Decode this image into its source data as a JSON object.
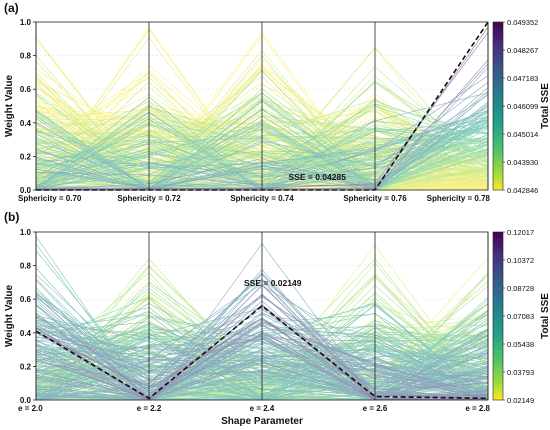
{
  "chart_data": [
    {
      "type": "line",
      "panel": "(a)",
      "xlabel": "",
      "ylabel": "Weight Value",
      "ylim": [
        0,
        1.0
      ],
      "yticks": [
        "0.0",
        "0.2",
        "0.4",
        "0.6",
        "0.8",
        "1.0"
      ],
      "categories": [
        "Sphericity = 0.70",
        "Sphericity = 0.72",
        "Sphericity = 0.74",
        "Sphericity = 0.76",
        "Sphericity = 0.78"
      ],
      "best_line": {
        "values": [
          0.0,
          0.0,
          0.0,
          0.0,
          1.0
        ],
        "annotation": "SSE = 0.04285"
      },
      "colorbar": {
        "label": "Total SSE",
        "colormap": "viridis_r",
        "ticks": [
          "0.049352",
          "0.048267",
          "0.047183",
          "0.046099",
          "0.045014",
          "0.043930",
          "0.042846"
        ]
      }
    },
    {
      "type": "line",
      "panel": "(b)",
      "xlabel": "Shape Parameter",
      "ylabel": "Weight Value",
      "ylim": [
        0,
        1.0
      ],
      "yticks": [
        "0.0",
        "0.2",
        "0.4",
        "0.6",
        "0.8",
        "1.0"
      ],
      "categories": [
        "e = 2.0",
        "e = 2.2",
        "e = 2.4",
        "e = 2.6",
        "e = 2.8"
      ],
      "best_line": {
        "values": [
          0.41,
          0.01,
          0.56,
          0.02,
          0.01
        ],
        "annotation": "SSE = 0.02149"
      },
      "colorbar": {
        "label": "Total SSE",
        "colormap": "viridis_r",
        "ticks": [
          "0.12017",
          "0.10372",
          "0.08728",
          "0.07083",
          "0.05438",
          "0.03793",
          "0.02149"
        ]
      }
    }
  ]
}
